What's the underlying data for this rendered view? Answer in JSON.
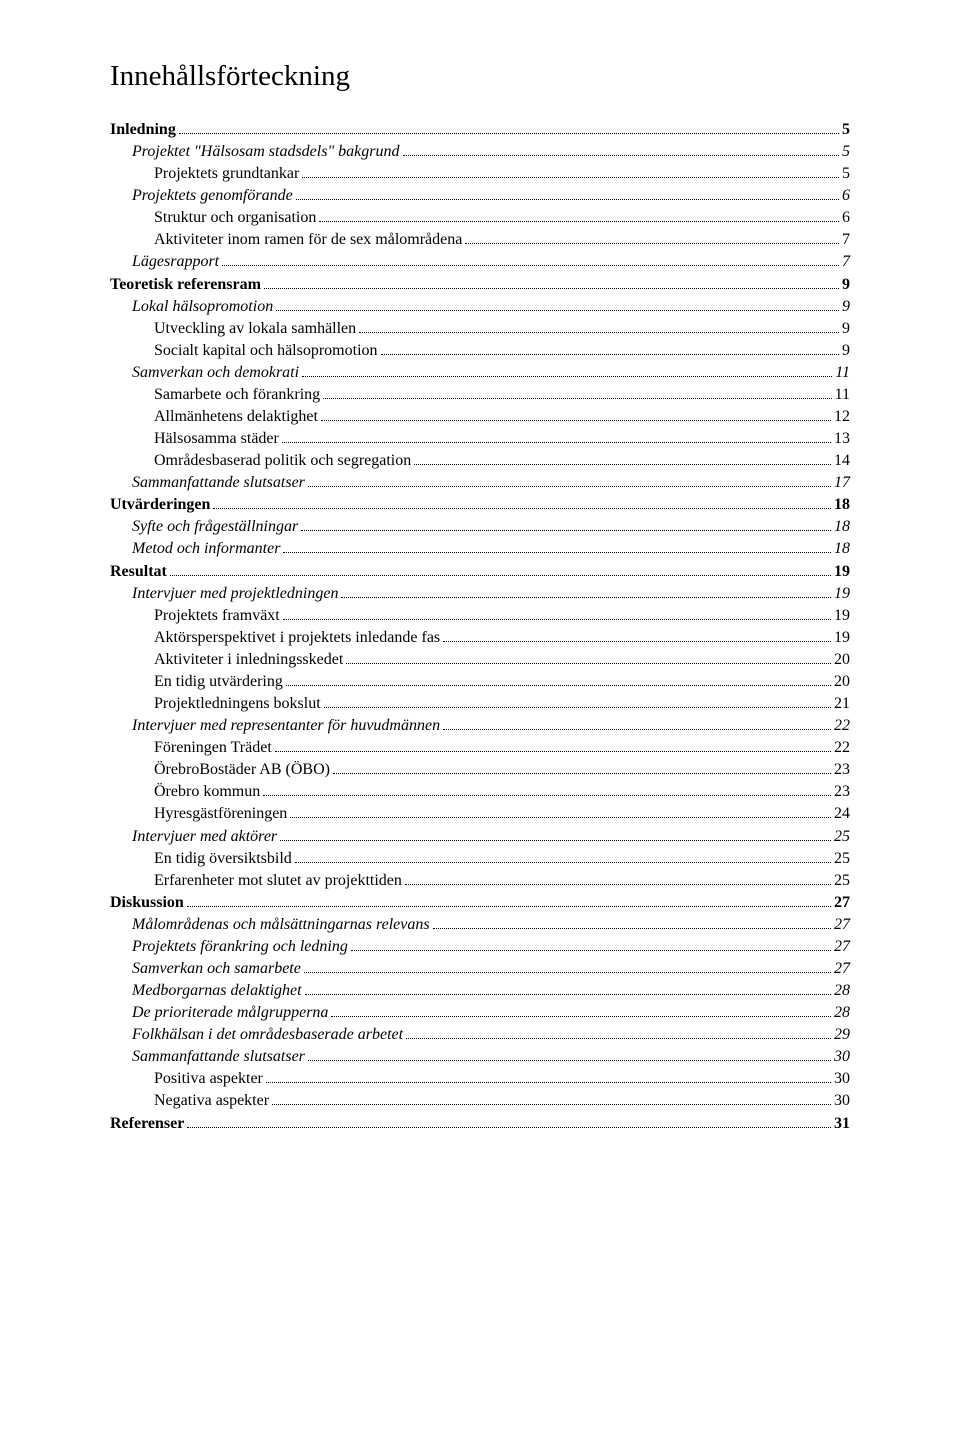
{
  "title": "Innehållsförteckning",
  "entries": [
    {
      "label": "Inledning",
      "page": "5",
      "level": 0,
      "bold": true,
      "italic": false
    },
    {
      "label": "Projektet \"Hälsosam stadsdels\" bakgrund",
      "page": "5",
      "level": 1,
      "bold": false,
      "italic": true
    },
    {
      "label": "Projektets grundtankar",
      "page": "5",
      "level": 2,
      "bold": false,
      "italic": false
    },
    {
      "label": "Projektets genomförande",
      "page": "6",
      "level": 1,
      "bold": false,
      "italic": true
    },
    {
      "label": "Struktur och organisation",
      "page": "6",
      "level": 2,
      "bold": false,
      "italic": false
    },
    {
      "label": "Aktiviteter inom ramen för de sex målområdena",
      "page": "7",
      "level": 2,
      "bold": false,
      "italic": false
    },
    {
      "label": "Lägesrapport",
      "page": "7",
      "level": 1,
      "bold": false,
      "italic": true
    },
    {
      "label": "Teoretisk referensram",
      "page": "9",
      "level": 0,
      "bold": true,
      "italic": false
    },
    {
      "label": "Lokal hälsopromotion",
      "page": "9",
      "level": 1,
      "bold": false,
      "italic": true
    },
    {
      "label": "Utveckling av lokala samhällen",
      "page": "9",
      "level": 2,
      "bold": false,
      "italic": false
    },
    {
      "label": "Socialt kapital och hälsopromotion",
      "page": "9",
      "level": 2,
      "bold": false,
      "italic": false
    },
    {
      "label": "Samverkan och demokrati",
      "page": "11",
      "level": 1,
      "bold": false,
      "italic": true
    },
    {
      "label": "Samarbete och förankring",
      "page": "11",
      "level": 2,
      "bold": false,
      "italic": false
    },
    {
      "label": "Allmänhetens delaktighet",
      "page": "12",
      "level": 2,
      "bold": false,
      "italic": false
    },
    {
      "label": "Hälsosamma städer",
      "page": "13",
      "level": 2,
      "bold": false,
      "italic": false
    },
    {
      "label": "Områdesbaserad politik och segregation",
      "page": "14",
      "level": 2,
      "bold": false,
      "italic": false
    },
    {
      "label": "Sammanfattande slutsatser",
      "page": "17",
      "level": 1,
      "bold": false,
      "italic": true
    },
    {
      "label": "Utvärderingen",
      "page": "18",
      "level": 0,
      "bold": true,
      "italic": false
    },
    {
      "label": "Syfte och frågeställningar",
      "page": "18",
      "level": 1,
      "bold": false,
      "italic": true
    },
    {
      "label": "Metod och informanter",
      "page": "18",
      "level": 1,
      "bold": false,
      "italic": true
    },
    {
      "label": "Resultat",
      "page": "19",
      "level": 0,
      "bold": true,
      "italic": false
    },
    {
      "label": "Intervjuer med projektledningen",
      "page": "19",
      "level": 1,
      "bold": false,
      "italic": true
    },
    {
      "label": "Projektets framväxt",
      "page": "19",
      "level": 2,
      "bold": false,
      "italic": false
    },
    {
      "label": "Aktörsperspektivet i projektets inledande fas",
      "page": "19",
      "level": 2,
      "bold": false,
      "italic": false
    },
    {
      "label": "Aktiviteter i inledningsskedet",
      "page": "20",
      "level": 2,
      "bold": false,
      "italic": false
    },
    {
      "label": "En tidig utvärdering",
      "page": "20",
      "level": 2,
      "bold": false,
      "italic": false
    },
    {
      "label": "Projektledningens bokslut",
      "page": "21",
      "level": 2,
      "bold": false,
      "italic": false
    },
    {
      "label": "Intervjuer med representanter för huvudmännen",
      "page": "22",
      "level": 1,
      "bold": false,
      "italic": true
    },
    {
      "label": "Föreningen Trädet",
      "page": "22",
      "level": 2,
      "bold": false,
      "italic": false
    },
    {
      "label": "ÖrebroBostäder AB (ÖBO)",
      "page": "23",
      "level": 2,
      "bold": false,
      "italic": false
    },
    {
      "label": "Örebro kommun",
      "page": "23",
      "level": 2,
      "bold": false,
      "italic": false
    },
    {
      "label": "Hyresgästföreningen",
      "page": "24",
      "level": 2,
      "bold": false,
      "italic": false
    },
    {
      "label": "Intervjuer med aktörer",
      "page": "25",
      "level": 1,
      "bold": false,
      "italic": true
    },
    {
      "label": "En tidig översiktsbild",
      "page": "25",
      "level": 2,
      "bold": false,
      "italic": false
    },
    {
      "label": "Erfarenheter mot slutet av projekttiden",
      "page": "25",
      "level": 2,
      "bold": false,
      "italic": false
    },
    {
      "label": "Diskussion",
      "page": "27",
      "level": 0,
      "bold": true,
      "italic": false
    },
    {
      "label": "Målområdenas och målsättningarnas relevans",
      "page": "27",
      "level": 1,
      "bold": false,
      "italic": true
    },
    {
      "label": "Projektets förankring och ledning",
      "page": "27",
      "level": 1,
      "bold": false,
      "italic": true
    },
    {
      "label": "Samverkan och samarbete",
      "page": "27",
      "level": 1,
      "bold": false,
      "italic": true
    },
    {
      "label": "Medborgarnas delaktighet",
      "page": "28",
      "level": 1,
      "bold": false,
      "italic": true
    },
    {
      "label": "De prioriterade målgrupperna",
      "page": "28",
      "level": 1,
      "bold": false,
      "italic": true
    },
    {
      "label": "Folkhälsan i det områdesbaserade arbetet",
      "page": "29",
      "level": 1,
      "bold": false,
      "italic": true
    },
    {
      "label": "Sammanfattande slutsatser",
      "page": "30",
      "level": 1,
      "bold": false,
      "italic": true
    },
    {
      "label": "Positiva aspekter",
      "page": "30",
      "level": 2,
      "bold": false,
      "italic": false
    },
    {
      "label": "Negativa aspekter",
      "page": "30",
      "level": 2,
      "bold": false,
      "italic": false
    },
    {
      "label": "Referenser",
      "page": "31",
      "level": 0,
      "bold": true,
      "italic": false
    }
  ]
}
